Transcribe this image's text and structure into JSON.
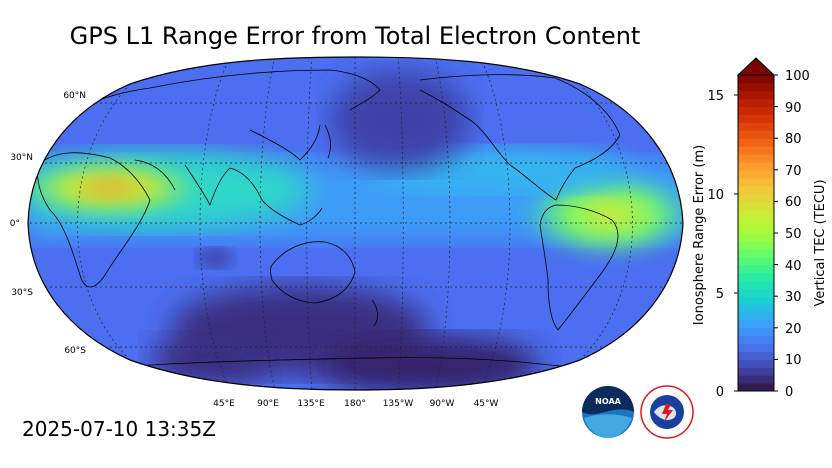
{
  "title": "GPS L1 Range Error from Total Electron Content",
  "timestamp": "2025-07-10 13:35Z",
  "map": {
    "projection": "Robinson",
    "central_longitude": "180°",
    "lat_labels": [
      "60°N",
      "30°N",
      "0°",
      "30°S",
      "60°S"
    ],
    "lon_labels": [
      "45°E",
      "90°E",
      "135°E",
      "180°",
      "135°W",
      "90°W",
      "45°W"
    ]
  },
  "colorbar": {
    "left_label": "Ionosphere Range Error (m)",
    "left_ticks": [
      "0",
      "5",
      "10",
      "15"
    ],
    "right_label": "Vertical TEC (TECU)",
    "right_ticks": [
      "0",
      "10",
      "20",
      "30",
      "40",
      "50",
      "60",
      "70",
      "80",
      "90",
      "100"
    ],
    "colors": [
      "#30123b",
      "#4145ab",
      "#4675ed",
      "#39a2fc",
      "#1bcfd4",
      "#24eca6",
      "#61fc6c",
      "#a4fc3b",
      "#d1e834",
      "#f3c63a",
      "#fe9b2d",
      "#f36315",
      "#d93806",
      "#b11901",
      "#7a0402"
    ]
  },
  "logos": {
    "noaa": "NOAA",
    "nws": "NATIONAL WEATHER SERVICE"
  }
}
